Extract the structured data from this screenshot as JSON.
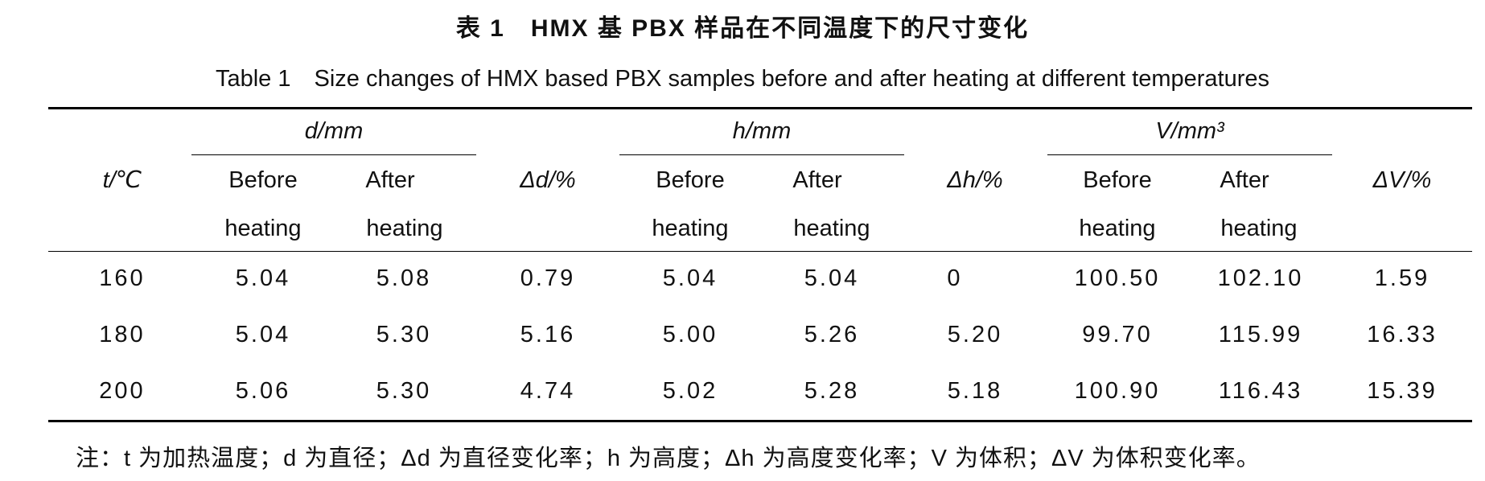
{
  "title_cn": "表 1　HMX 基 PBX 样品在不同温度下的尺寸变化",
  "title_en": "Table 1　Size changes of HMX based PBX samples before and after heating at different temperatures",
  "headers": {
    "t": "t/℃",
    "d_group": "d/mm",
    "delta_d": "Δd/%",
    "h_group": "h/mm",
    "delta_h": "Δh/%",
    "v_group": "V/mm³",
    "delta_v": "ΔV/%",
    "before_1": "Before",
    "before_2": "heating",
    "after_1": "After",
    "after_2": "heating"
  },
  "rows": [
    [
      "160",
      "5.04",
      "5.08",
      "0.79",
      "5.04",
      "5.04",
      "0",
      "100.50",
      "102.10",
      "1.59"
    ],
    [
      "180",
      "5.04",
      "5.30",
      "5.16",
      "5.00",
      "5.26",
      "5.20",
      "99.70",
      "115.99",
      "16.33"
    ],
    [
      "200",
      "5.06",
      "5.30",
      "4.74",
      "5.02",
      "5.28",
      "5.18",
      "100.90",
      "116.43",
      "15.39"
    ]
  ],
  "note": "注：t 为加热温度；d 为直径；Δd 为直径变化率；h 为高度；Δh 为高度变化率；V 为体积；ΔV 为体积变化率。"
}
